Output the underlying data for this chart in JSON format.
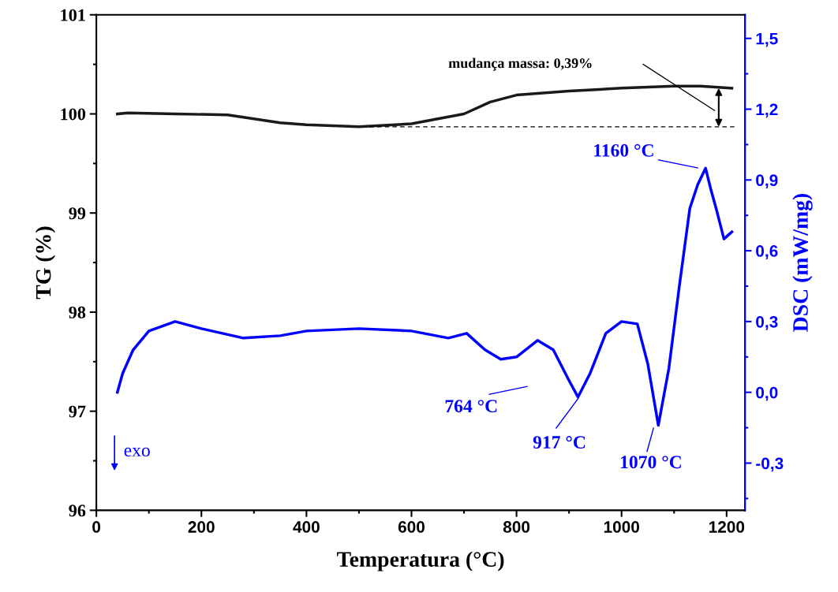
{
  "chart_data": {
    "type": "line",
    "xlabel": "Temperatura (°C)",
    "ylabel": "TG (%)",
    "y2label": "DSC (mW/mg)",
    "xlim": [
      0,
      1235
    ],
    "xticks": [
      0,
      200,
      400,
      600,
      800,
      1000,
      1200
    ],
    "ylim": [
      96,
      101
    ],
    "yticks": [
      96,
      97,
      98,
      99,
      100,
      101
    ],
    "y2lim": [
      -0.5,
      1.6
    ],
    "y2ticks": [
      {
        "value": -0.3,
        "label": "-0,3"
      },
      {
        "value": 0.0,
        "label": "0,0"
      },
      {
        "value": 0.3,
        "label": "0,3"
      },
      {
        "value": 0.6,
        "label": "0,6"
      },
      {
        "value": 0.9,
        "label": "0,9"
      },
      {
        "value": 1.2,
        "label": "1,2"
      },
      {
        "value": 1.5,
        "label": "1,5"
      }
    ],
    "grid": false,
    "legend": false,
    "series": [
      {
        "color": "#1a1a1a",
        "x": [
          40,
          60,
          150,
          250,
          300,
          350,
          400,
          500,
          600,
          650,
          700,
          750,
          800,
          900,
          1000,
          1100,
          1150,
          1210
        ],
        "values": [
          100.0,
          100.01,
          100.0,
          99.99,
          99.95,
          99.91,
          99.89,
          99.87,
          99.9,
          99.95,
          100.0,
          100.12,
          100.19,
          100.23,
          100.26,
          100.28,
          100.28,
          100.26
        ]
      },
      {
        "color": "#000000",
        "line_style": "dashed",
        "x": [
          520,
          1215
        ],
        "values": [
          99.87,
          99.87
        ]
      },
      {
        "color": "#0000ff",
        "axis": "y2",
        "x": [
          40,
          50,
          70,
          100,
          150,
          200,
          280,
          350,
          400,
          500,
          600,
          670,
          705,
          740,
          770,
          800,
          840,
          870,
          900,
          917,
          940,
          970,
          1000,
          1030,
          1050,
          1070,
          1090,
          1110,
          1130,
          1145,
          1160,
          1170,
          1180,
          1195,
          1205,
          1210
        ],
        "values": [
          0.0,
          0.08,
          0.18,
          0.26,
          0.3,
          0.27,
          0.23,
          0.24,
          0.26,
          0.27,
          0.26,
          0.23,
          0.25,
          0.18,
          0.14,
          0.15,
          0.22,
          0.18,
          0.05,
          -0.02,
          0.08,
          0.25,
          0.3,
          0.29,
          0.12,
          -0.14,
          0.1,
          0.45,
          0.78,
          0.88,
          0.95,
          0.86,
          0.78,
          0.65,
          0.67,
          0.68
        ]
      }
    ],
    "annotations": [
      "mudança massa: 0,39%",
      "764 °C",
      "917 °C",
      "1070 °C",
      "1160 °C",
      "exo"
    ]
  }
}
